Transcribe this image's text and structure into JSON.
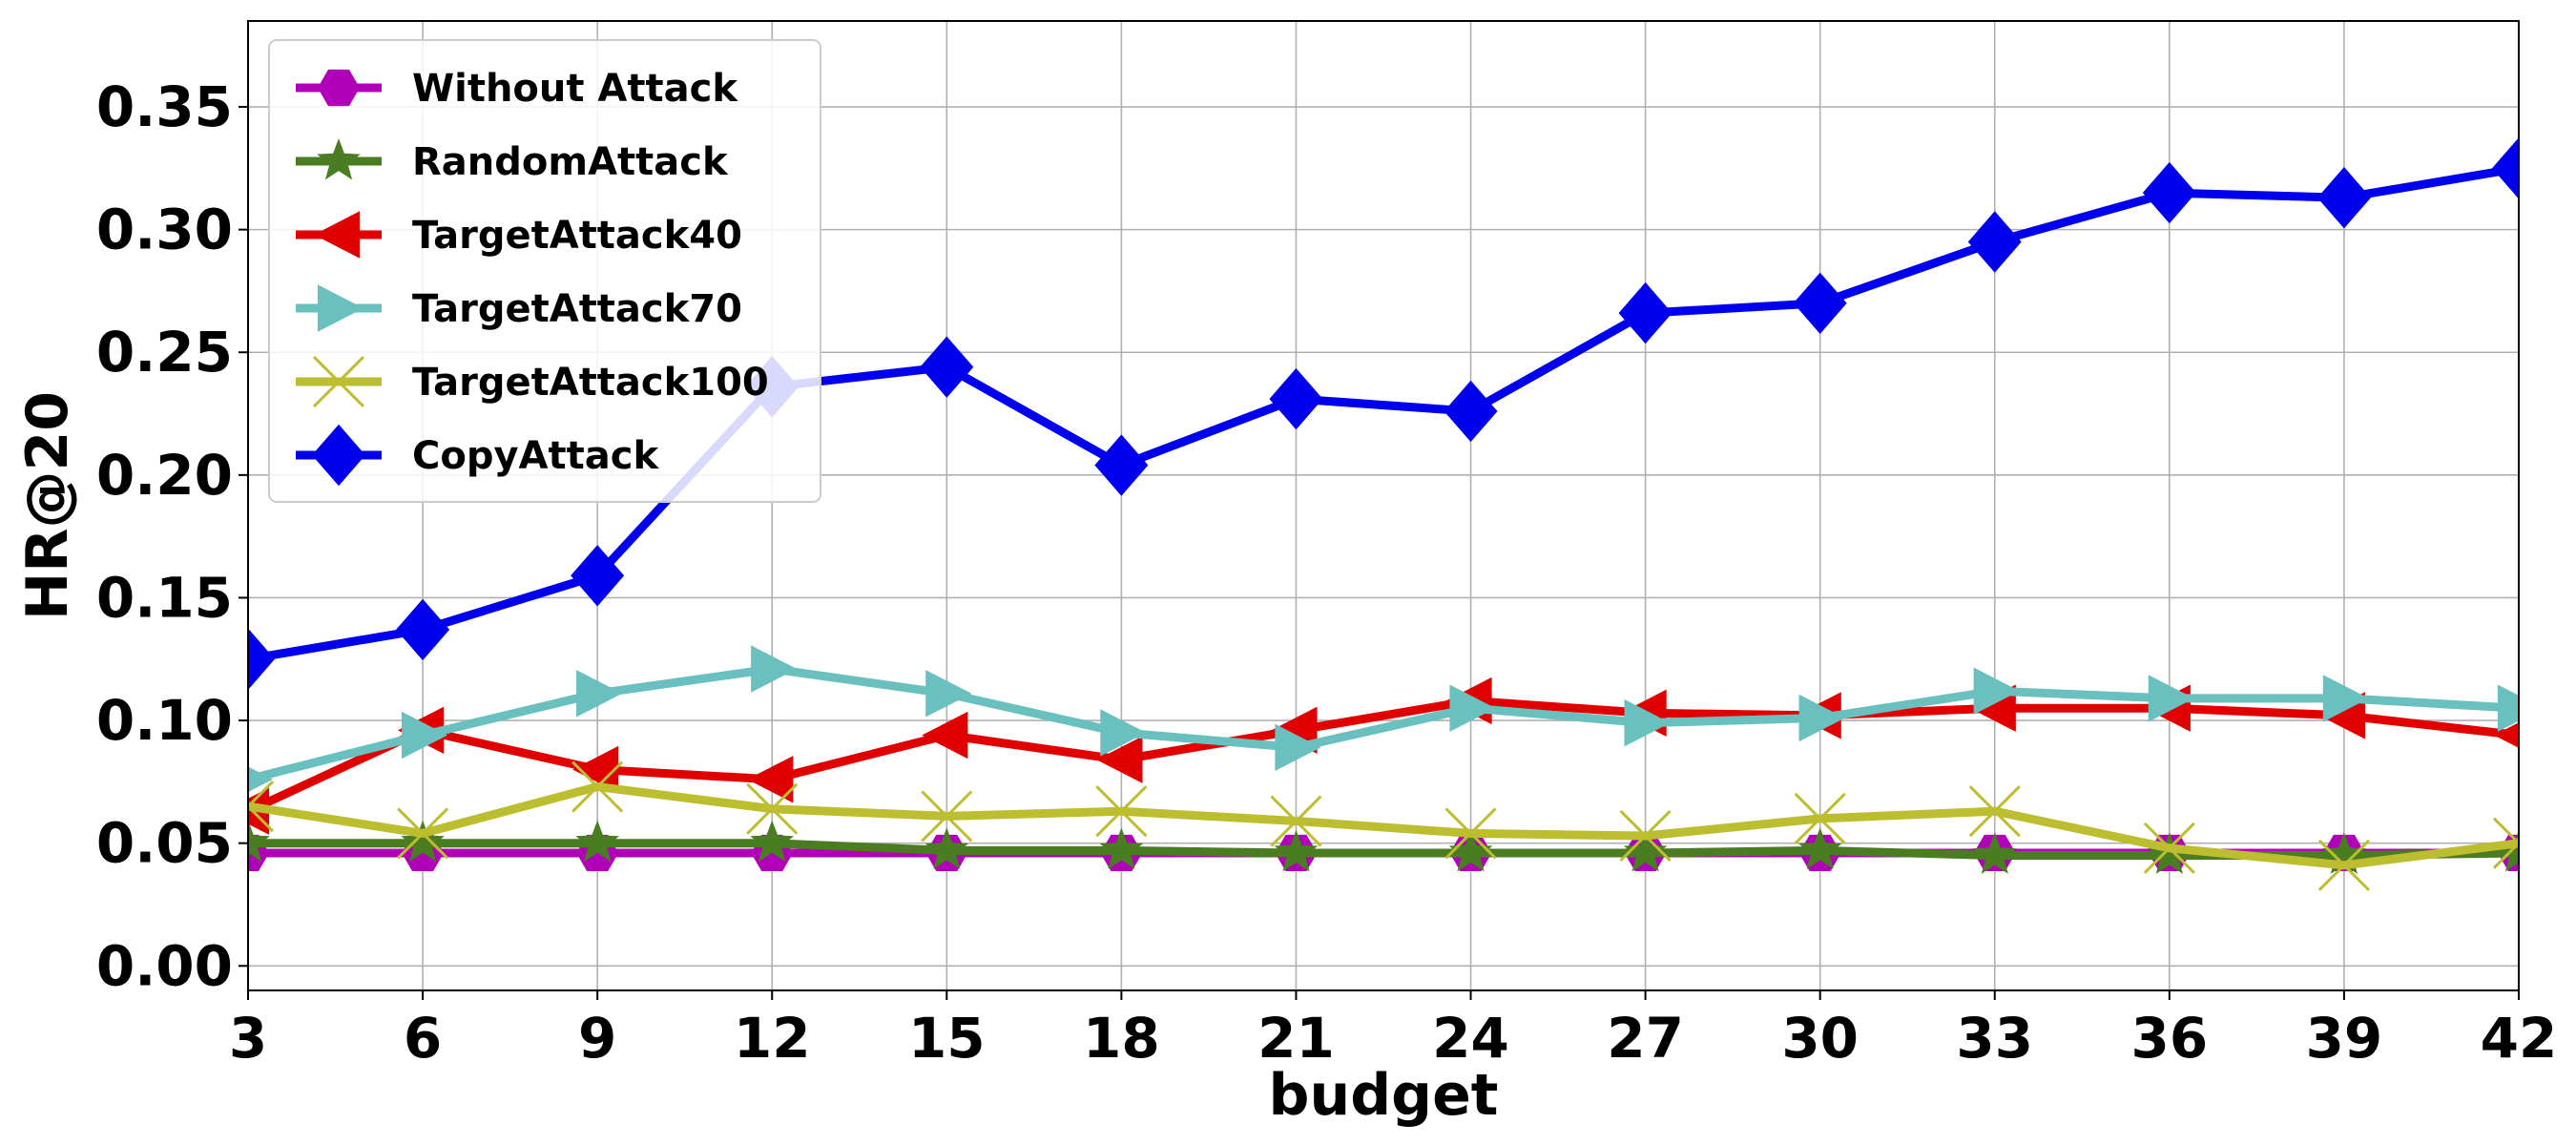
{
  "chart_data": {
    "type": "line",
    "title": "",
    "xlabel": "budget",
    "ylabel": "HR@20",
    "x": [
      3,
      6,
      9,
      12,
      15,
      18,
      21,
      24,
      27,
      30,
      33,
      36,
      39,
      42
    ],
    "xlim": [
      3,
      42
    ],
    "ylim": [
      -0.01,
      0.385
    ],
    "x_ticks": [
      "3",
      "6",
      "9",
      "12",
      "15",
      "18",
      "21",
      "24",
      "27",
      "30",
      "33",
      "36",
      "39",
      "42"
    ],
    "y_ticks": [
      "0.00",
      "0.05",
      "0.10",
      "0.15",
      "0.20",
      "0.25",
      "0.30",
      "0.35"
    ],
    "grid": true,
    "legend_position": "top-left",
    "series": [
      {
        "name": "Without Attack",
        "color": "#b000b8",
        "marker": "hexagon",
        "values": [
          0.046,
          0.046,
          0.046,
          0.046,
          0.046,
          0.046,
          0.046,
          0.046,
          0.046,
          0.046,
          0.046,
          0.046,
          0.046,
          0.046
        ]
      },
      {
        "name": "RandomAttack",
        "color": "#4a7d22",
        "marker": "star",
        "values": [
          0.05,
          0.05,
          0.05,
          0.05,
          0.047,
          0.047,
          0.046,
          0.046,
          0.046,
          0.047,
          0.045,
          0.045,
          0.045,
          0.046
        ]
      },
      {
        "name": "TargetAttack40",
        "color": "#e00000",
        "marker": "triangle-left",
        "values": [
          0.063,
          0.096,
          0.08,
          0.076,
          0.094,
          0.084,
          0.096,
          0.108,
          0.103,
          0.102,
          0.105,
          0.105,
          0.102,
          0.094
        ]
      },
      {
        "name": "TargetAttack70",
        "color": "#6abfbf",
        "marker": "triangle-right",
        "values": [
          0.076,
          0.094,
          0.111,
          0.121,
          0.111,
          0.095,
          0.089,
          0.105,
          0.099,
          0.101,
          0.112,
          0.109,
          0.109,
          0.105
        ]
      },
      {
        "name": "TargetAttack100",
        "color": "#bdbd30",
        "marker": "x",
        "values": [
          0.065,
          0.054,
          0.073,
          0.064,
          0.061,
          0.063,
          0.059,
          0.054,
          0.053,
          0.06,
          0.063,
          0.048,
          0.041,
          0.05
        ]
      },
      {
        "name": "CopyAttack",
        "color": "#0000ee",
        "marker": "diamond",
        "values": [
          0.125,
          0.137,
          0.159,
          0.236,
          0.244,
          0.204,
          0.231,
          0.226,
          0.266,
          0.27,
          0.295,
          0.315,
          0.313,
          0.325
        ]
      }
    ]
  }
}
